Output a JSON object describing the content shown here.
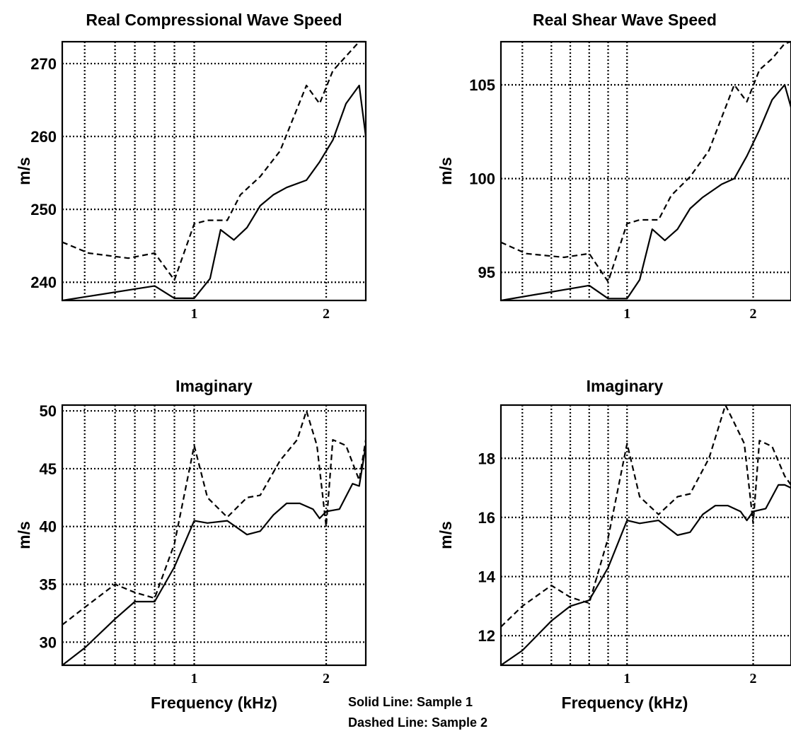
{
  "chart_data": [
    {
      "type": "line",
      "title": "Real Compressional Wave Speed",
      "ylabel": "m/s",
      "xlabel": "",
      "xlim": [
        0,
        2.3
      ],
      "ylim": [
        237.5,
        273
      ],
      "xticks": [
        1,
        2
      ],
      "yticks": [
        240,
        250,
        260,
        270
      ],
      "vgrid": [
        0.17,
        0.4,
        0.55,
        0.7,
        0.85,
        1,
        2
      ],
      "grid": true,
      "series": [
        {
          "style": "solid",
          "x": [
            0,
            0.7,
            0.85,
            1,
            1.12,
            1.2,
            1.3,
            1.4,
            1.5,
            1.6,
            1.7,
            1.85,
            1.95,
            2.05,
            2.15,
            2.25,
            2.3
          ],
          "y": [
            237.5,
            239.5,
            237.8,
            237.8,
            240.5,
            247.2,
            245.8,
            247.5,
            250.5,
            252,
            253,
            254,
            256.5,
            259.5,
            264.5,
            267,
            260
          ]
        },
        {
          "style": "dashed",
          "x": [
            0,
            0.2,
            0.5,
            0.7,
            0.85,
            1,
            1.1,
            1.25,
            1.35,
            1.5,
            1.65,
            1.85,
            1.95,
            2.05,
            2.15,
            2.25,
            2.3
          ],
          "y": [
            245.5,
            244,
            243.3,
            244,
            240.3,
            248,
            248.5,
            248.5,
            252,
            254.5,
            258,
            267,
            264.5,
            269,
            271,
            273,
            273
          ]
        }
      ]
    },
    {
      "type": "line",
      "title": "Real Shear Wave Speed",
      "ylabel": "m/s",
      "xlabel": "",
      "xlim": [
        0,
        2.3
      ],
      "ylim": [
        93.5,
        107.3
      ],
      "xticks": [
        1,
        2
      ],
      "yticks": [
        95,
        100,
        105
      ],
      "vgrid": [
        0.17,
        0.4,
        0.55,
        0.7,
        0.85,
        1,
        2
      ],
      "grid": true,
      "series": [
        {
          "style": "solid",
          "x": [
            0,
            0.7,
            0.85,
            1,
            1.1,
            1.2,
            1.3,
            1.4,
            1.5,
            1.6,
            1.75,
            1.85,
            1.95,
            2.05,
            2.15,
            2.25,
            2.3
          ],
          "y": [
            93.5,
            94.3,
            93.6,
            93.6,
            94.6,
            97.3,
            96.7,
            97.3,
            98.4,
            99,
            99.7,
            100,
            101.2,
            102.6,
            104.2,
            105,
            103.8
          ]
        },
        {
          "style": "dashed",
          "x": [
            0,
            0.2,
            0.5,
            0.7,
            0.85,
            1,
            1.1,
            1.25,
            1.35,
            1.5,
            1.65,
            1.85,
            1.95,
            2.05,
            2.15,
            2.25,
            2.3
          ],
          "y": [
            96.6,
            96,
            95.8,
            96,
            94.5,
            97.6,
            97.8,
            97.8,
            99.1,
            100.1,
            101.5,
            105,
            104.1,
            105.8,
            106.4,
            107.2,
            107.3
          ]
        }
      ]
    },
    {
      "type": "line",
      "title": "Imaginary",
      "ylabel": "m/s",
      "xlabel": "Frequency (kHz)",
      "xlim": [
        0,
        2.3
      ],
      "ylim": [
        28,
        50.5
      ],
      "xticks": [
        1,
        2
      ],
      "yticks": [
        30,
        35,
        40,
        45,
        50
      ],
      "vgrid": [
        0.17,
        0.4,
        0.55,
        0.7,
        0.85,
        1,
        2
      ],
      "grid": true,
      "series": [
        {
          "style": "solid",
          "x": [
            0,
            0.17,
            0.4,
            0.55,
            0.7,
            0.85,
            1,
            1.1,
            1.25,
            1.4,
            1.5,
            1.6,
            1.7,
            1.8,
            1.9,
            1.95,
            2,
            2.1,
            2.2,
            2.25,
            2.3
          ],
          "y": [
            28,
            29.5,
            32,
            33.5,
            33.5,
            36.5,
            40.5,
            40.3,
            40.5,
            39.3,
            39.6,
            41,
            42,
            42,
            41.5,
            40.7,
            41.3,
            41.5,
            43.7,
            43.5,
            47
          ]
        },
        {
          "style": "dashed",
          "x": [
            0,
            0.17,
            0.4,
            0.55,
            0.7,
            0.85,
            1,
            1.1,
            1.25,
            1.4,
            1.5,
            1.65,
            1.78,
            1.85,
            1.93,
            2,
            2.05,
            2.15,
            2.25,
            2.3
          ],
          "y": [
            31.5,
            33,
            35,
            34.3,
            33.8,
            38.5,
            47,
            42.5,
            40.8,
            42.5,
            42.7,
            45.7,
            47.5,
            50,
            47,
            40,
            47.5,
            47,
            44,
            47.5
          ]
        }
      ]
    },
    {
      "type": "line",
      "title": "Imaginary",
      "ylabel": "m/s",
      "xlabel": "Frequency (kHz)",
      "xlim": [
        0,
        2.3
      ],
      "ylim": [
        11,
        19.8
      ],
      "xticks": [
        1,
        2
      ],
      "yticks": [
        12,
        14,
        16,
        18
      ],
      "vgrid": [
        0.17,
        0.4,
        0.55,
        0.7,
        0.85,
        1,
        2
      ],
      "grid": true,
      "series": [
        {
          "style": "solid",
          "x": [
            0,
            0.17,
            0.4,
            0.55,
            0.7,
            0.85,
            1,
            1.1,
            1.25,
            1.4,
            1.5,
            1.6,
            1.7,
            1.8,
            1.9,
            1.95,
            2,
            2.1,
            2.2,
            2.25,
            2.3
          ],
          "y": [
            11,
            11.5,
            12.5,
            13,
            13.2,
            14.3,
            15.9,
            15.8,
            15.9,
            15.4,
            15.5,
            16.1,
            16.4,
            16.4,
            16.2,
            15.9,
            16.2,
            16.3,
            17.1,
            17.1,
            17
          ]
        },
        {
          "style": "dashed",
          "x": [
            0,
            0.17,
            0.4,
            0.55,
            0.7,
            0.85,
            1,
            1.1,
            1.25,
            1.4,
            1.5,
            1.65,
            1.78,
            1.85,
            1.93,
            2,
            2.05,
            2.15,
            2.25,
            2.3
          ],
          "y": [
            12.3,
            13,
            13.7,
            13.3,
            13.1,
            15.3,
            18.5,
            16.7,
            16.1,
            16.7,
            16.8,
            18,
            19.8,
            19.2,
            18.5,
            15.8,
            18.6,
            18.4,
            17.4,
            17.1
          ]
        }
      ]
    }
  ],
  "legend": {
    "solid": "Solid Line:  Sample 1",
    "dashed": "Dashed Line:  Sample 2"
  }
}
